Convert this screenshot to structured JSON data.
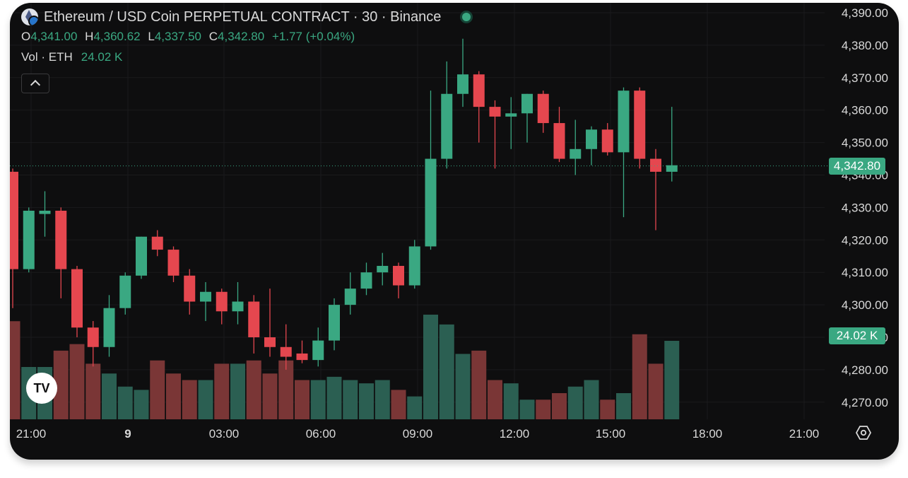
{
  "header": {
    "title": "Ethereum / USD Coin PERPETUAL CONTRACT · 30 · Binance",
    "ohlc": {
      "o_label": "O",
      "o_value": "4,341.00",
      "h_label": "H",
      "h_value": "4,360.62",
      "l_label": "L",
      "l_value": "4,337.50",
      "c_label": "C",
      "c_value": "4,342.80",
      "change": "+1.77 (+0.04%)"
    },
    "volume_label": "Vol · ETH",
    "volume_value": "24.02 K"
  },
  "price_tag": "4,342.80",
  "volume_tag": "24.02 K",
  "logo_text": "TV",
  "colors": {
    "up": "#3aa882",
    "down": "#e5474f",
    "vol_up": "#2b5f52",
    "vol_down": "#7a3636",
    "background": "#0e0e0f",
    "text": "#d9d9d9"
  },
  "icons": {
    "settings": "settings-icon",
    "collapse": "chevron-up-icon"
  },
  "chart_data": {
    "type": "candlestick",
    "title": "Ethereum / USD Coin PERPETUAL CONTRACT · 30 · Binance",
    "y_ticks": [
      "4,270.00",
      "4,280.00",
      "4,290.00",
      "4,300.00",
      "4,310.00",
      "4,320.00",
      "4,330.00",
      "4,340.00",
      "4,350.00",
      "4,360.00",
      "4,370.00",
      "4,380.00",
      "4,390.00"
    ],
    "x_ticks": [
      "21:00",
      "9",
      "03:00",
      "06:00",
      "09:00",
      "12:00",
      "15:00",
      "18:00",
      "21:00"
    ],
    "ylim": [
      4266,
      4394
    ],
    "last_price": 4342.8,
    "candles": [
      {
        "o": 4341,
        "h": 4342,
        "l": 4299,
        "c": 4311,
        "v": 30
      },
      {
        "o": 4311,
        "h": 4330,
        "l": 4310,
        "c": 4329,
        "v": 16
      },
      {
        "o": 4328,
        "h": 4335,
        "l": 4321,
        "c": 4329,
        "v": 16
      },
      {
        "o": 4329,
        "h": 4330,
        "l": 4302,
        "c": 4311,
        "v": 21
      },
      {
        "o": 4311,
        "h": 4312,
        "l": 4290,
        "c": 4293,
        "v": 23
      },
      {
        "o": 4293,
        "h": 4295,
        "l": 4281,
        "c": 4287,
        "v": 17
      },
      {
        "o": 4287,
        "h": 4303,
        "l": 4284,
        "c": 4299,
        "v": 14
      },
      {
        "o": 4299,
        "h": 4310,
        "l": 4297,
        "c": 4309,
        "v": 10
      },
      {
        "o": 4309,
        "h": 4321,
        "l": 4308,
        "c": 4321,
        "v": 9
      },
      {
        "o": 4321,
        "h": 4323,
        "l": 4315,
        "c": 4317,
        "v": 18
      },
      {
        "o": 4317,
        "h": 4318,
        "l": 4307,
        "c": 4309,
        "v": 14
      },
      {
        "o": 4309,
        "h": 4311,
        "l": 4297,
        "c": 4301,
        "v": 12
      },
      {
        "o": 4301,
        "h": 4307,
        "l": 4295,
        "c": 4304,
        "v": 12
      },
      {
        "o": 4304,
        "h": 4305,
        "l": 4294,
        "c": 4298,
        "v": 17
      },
      {
        "o": 4298,
        "h": 4307,
        "l": 4294,
        "c": 4301,
        "v": 17
      },
      {
        "o": 4301,
        "h": 4303,
        "l": 4285,
        "c": 4290,
        "v": 18
      },
      {
        "o": 4290,
        "h": 4305,
        "l": 4284,
        "c": 4287,
        "v": 14
      },
      {
        "o": 4287,
        "h": 4294,
        "l": 4280,
        "c": 4284,
        "v": 18
      },
      {
        "o": 4285,
        "h": 4289,
        "l": 4282,
        "c": 4283,
        "v": 12
      },
      {
        "o": 4283,
        "h": 4293,
        "l": 4281,
        "c": 4289,
        "v": 12
      },
      {
        "o": 4289,
        "h": 4302,
        "l": 4286,
        "c": 4300,
        "v": 13
      },
      {
        "o": 4300,
        "h": 4310,
        "l": 4297,
        "c": 4305,
        "v": 12
      },
      {
        "o": 4305,
        "h": 4313,
        "l": 4303,
        "c": 4310,
        "v": 11
      },
      {
        "o": 4310,
        "h": 4316,
        "l": 4306,
        "c": 4312,
        "v": 12
      },
      {
        "o": 4312,
        "h": 4313,
        "l": 4302,
        "c": 4306,
        "v": 9
      },
      {
        "o": 4306,
        "h": 4320,
        "l": 4305,
        "c": 4318,
        "v": 7
      },
      {
        "o": 4318,
        "h": 4366,
        "l": 4317,
        "c": 4345,
        "v": 32
      },
      {
        "o": 4345,
        "h": 4375,
        "l": 4342,
        "c": 4365,
        "v": 29
      },
      {
        "o": 4365,
        "h": 4382,
        "l": 4361,
        "c": 4371,
        "v": 20
      },
      {
        "o": 4371,
        "h": 4372,
        "l": 4350,
        "c": 4361,
        "v": 21
      },
      {
        "o": 4361,
        "h": 4363,
        "l": 4342,
        "c": 4358,
        "v": 12
      },
      {
        "o": 4358,
        "h": 4364,
        "l": 4348,
        "c": 4359,
        "v": 11
      },
      {
        "o": 4359,
        "h": 4365,
        "l": 4350,
        "c": 4365,
        "v": 6
      },
      {
        "o": 4365,
        "h": 4366,
        "l": 4353,
        "c": 4356,
        "v": 6
      },
      {
        "o": 4356,
        "h": 4361,
        "l": 4344,
        "c": 4345,
        "v": 8
      },
      {
        "o": 4345,
        "h": 4357,
        "l": 4340,
        "c": 4348,
        "v": 10
      },
      {
        "o": 4348,
        "h": 4355,
        "l": 4343,
        "c": 4354,
        "v": 12
      },
      {
        "o": 4354,
        "h": 4356,
        "l": 4346,
        "c": 4347,
        "v": 6
      },
      {
        "o": 4347,
        "h": 4367,
        "l": 4327,
        "c": 4366,
        "v": 8
      },
      {
        "o": 4366,
        "h": 4367,
        "l": 4342,
        "c": 4345,
        "v": 26
      },
      {
        "o": 4345,
        "h": 4348,
        "l": 4323,
        "c": 4341,
        "v": 17
      },
      {
        "o": 4341,
        "h": 4361,
        "l": 4338,
        "c": 4343,
        "v": 24
      }
    ]
  }
}
